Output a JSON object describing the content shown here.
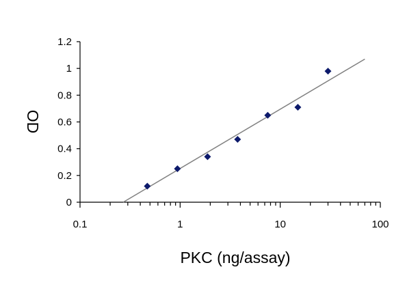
{
  "chart_data": {
    "type": "scatter",
    "title": "",
    "xlabel": "PKC (ng/assay)",
    "ylabel": "OD",
    "x_scale": "log",
    "xlim": [
      0.1,
      100
    ],
    "ylim": [
      0,
      1.2
    ],
    "x_ticks": [
      0.1,
      1,
      10,
      100
    ],
    "x_tick_labels": [
      "0.1",
      "1",
      "10",
      "100"
    ],
    "y_ticks": [
      0,
      0.2,
      0.4,
      0.6,
      0.8,
      1,
      1.2
    ],
    "y_tick_labels": [
      "0",
      "0.2",
      "0.4",
      "0.6",
      "0.8",
      "1",
      "1.2"
    ],
    "grid": false,
    "legend": "none",
    "series": [
      {
        "x": [
          0.47,
          0.94,
          1.88,
          3.75,
          7.5,
          15,
          30
        ],
        "y": [
          0.12,
          0.25,
          0.34,
          0.47,
          0.65,
          0.71,
          0.98
        ],
        "marker": "diamond",
        "color": "#0d1a6b"
      }
    ],
    "trendline": {
      "type": "log-linear",
      "x": [
        0.27,
        70
      ],
      "y": [
        0.0,
        1.07
      ],
      "color": "#808080"
    }
  }
}
